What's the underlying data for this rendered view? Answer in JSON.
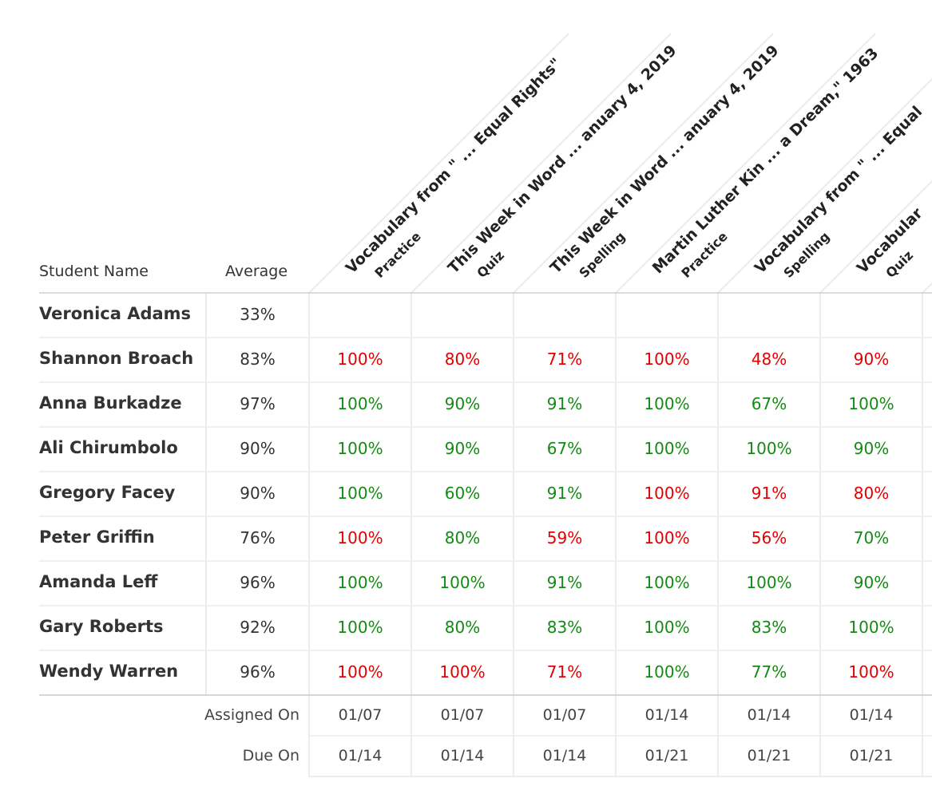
{
  "header": {
    "student_name": "Student Name",
    "average": "Average"
  },
  "columns": [
    {
      "title": "Vocabulary from \"  ... Equal Rights\"",
      "kind": "Practice"
    },
    {
      "title": "This Week in Word ... anuary 4, 2019",
      "kind": "Quiz"
    },
    {
      "title": "This Week in Word ... anuary 4, 2019",
      "kind": "Spelling"
    },
    {
      "title": "Martin Luther Kin ... a Dream,\" 1963",
      "kind": "Practice"
    },
    {
      "title": "Vocabulary from \"  ... Equal",
      "kind": "Spelling"
    },
    {
      "title": "Vocabular",
      "kind": "Quiz"
    }
  ],
  "rows": [
    {
      "name": "Veronica Adams",
      "average": "33%",
      "scores": [],
      "colors": []
    },
    {
      "name": "Shannon Broach",
      "average": "83%",
      "scores": [
        "100%",
        "80%",
        "71%",
        "100%",
        "48%",
        "90%"
      ],
      "colors": [
        "red",
        "red",
        "red",
        "red",
        "red",
        "red"
      ]
    },
    {
      "name": "Anna Burkadze",
      "average": "97%",
      "scores": [
        "100%",
        "90%",
        "91%",
        "100%",
        "67%",
        "100%"
      ],
      "colors": [
        "green",
        "green",
        "green",
        "green",
        "green",
        "green"
      ]
    },
    {
      "name": "Ali Chirumbolo",
      "average": "90%",
      "scores": [
        "100%",
        "90%",
        "67%",
        "100%",
        "100%",
        "90%"
      ],
      "colors": [
        "green",
        "green",
        "green",
        "green",
        "green",
        "green"
      ]
    },
    {
      "name": "Gregory Facey",
      "average": "90%",
      "scores": [
        "100%",
        "60%",
        "91%",
        "100%",
        "91%",
        "80%"
      ],
      "colors": [
        "green",
        "green",
        "green",
        "red",
        "red",
        "red"
      ]
    },
    {
      "name": "Peter Griffin",
      "average": "76%",
      "scores": [
        "100%",
        "80%",
        "59%",
        "100%",
        "56%",
        "70%"
      ],
      "colors": [
        "red",
        "green",
        "red",
        "red",
        "red",
        "green"
      ]
    },
    {
      "name": "Amanda Leff",
      "average": "96%",
      "scores": [
        "100%",
        "100%",
        "91%",
        "100%",
        "100%",
        "90%"
      ],
      "colors": [
        "green",
        "green",
        "green",
        "green",
        "green",
        "green"
      ]
    },
    {
      "name": "Gary Roberts",
      "average": "92%",
      "scores": [
        "100%",
        "80%",
        "83%",
        "100%",
        "83%",
        "100%"
      ],
      "colors": [
        "green",
        "green",
        "green",
        "green",
        "green",
        "green"
      ]
    },
    {
      "name": "Wendy Warren",
      "average": "96%",
      "scores": [
        "100%",
        "100%",
        "71%",
        "100%",
        "77%",
        "100%"
      ],
      "colors": [
        "red",
        "red",
        "red",
        "green",
        "green",
        "red"
      ]
    }
  ],
  "footer": {
    "assigned_label": "Assigned On",
    "assigned": [
      "01/07",
      "01/07",
      "01/07",
      "01/14",
      "01/14",
      "01/14"
    ],
    "due_label": "Due On",
    "due": [
      "01/14",
      "01/14",
      "01/14",
      "01/21",
      "01/21",
      "01/21"
    ]
  }
}
